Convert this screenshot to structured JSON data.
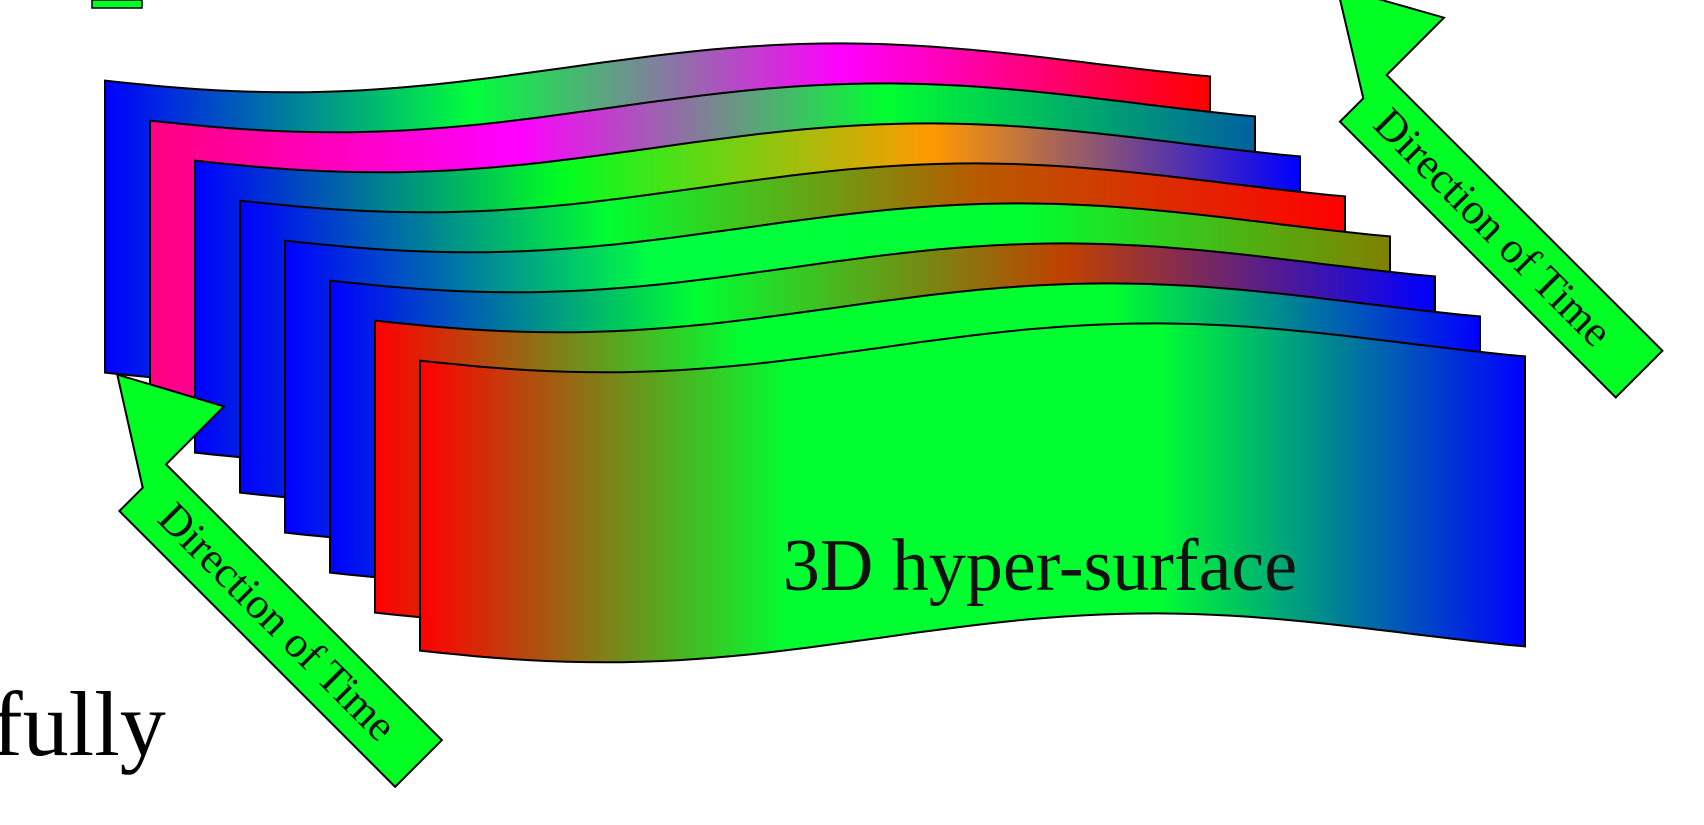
{
  "diagram": {
    "surface_label": "3D hyper-surface",
    "arrow_label": "Direction of Time",
    "left_fragment": "fully",
    "layers": [
      {
        "stops": [
          "#0000ff",
          "#00ff3a",
          "#ff00ff",
          "#ff0000"
        ]
      },
      {
        "stops": [
          "#ff0080",
          "#ff00ff",
          "#00ff30",
          "#0060a0"
        ]
      },
      {
        "stops": [
          "#0000ff",
          "#00ff20",
          "#ff9900",
          "#0000ff"
        ]
      },
      {
        "stops": [
          "#0000ff",
          "#00ff30",
          "#b85a00",
          "#ff0000"
        ]
      },
      {
        "stops": [
          "#0000ff",
          "#00ff40",
          "#00ff30",
          "#808000"
        ]
      },
      {
        "stops": [
          "#0000ff",
          "#00ff30",
          "#c04000",
          "#0000ff"
        ]
      },
      {
        "stops": [
          "#ff0000",
          "#00ff30",
          "#00ff30",
          "#0000ff"
        ]
      },
      {
        "stops": [
          "#ff0000",
          "#00ff30",
          "#00ff30",
          "#0000ff"
        ]
      }
    ],
    "arrow_color": "#00ff22"
  }
}
